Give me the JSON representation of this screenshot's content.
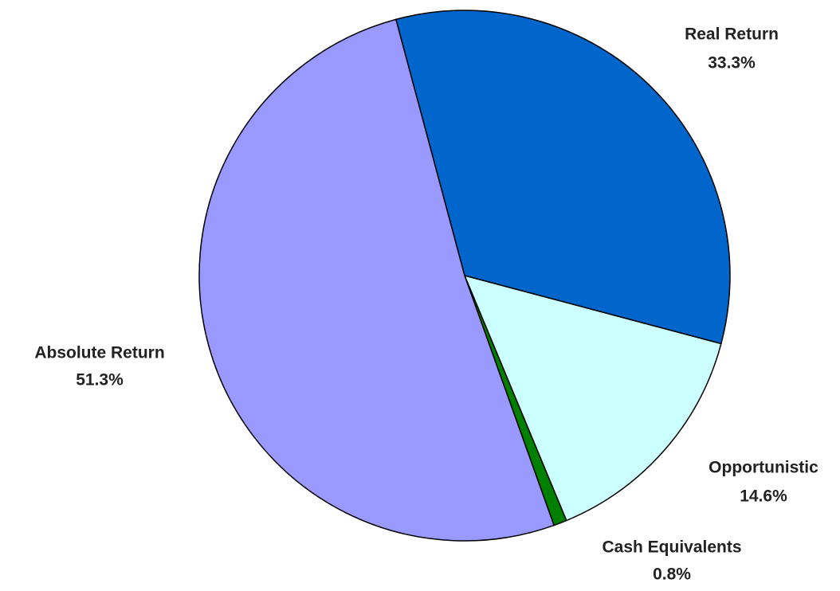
{
  "chart_data": {
    "type": "pie",
    "categories": [
      "Real Return",
      "Opportunistic",
      "Cash Equivalents",
      "Absolute Return"
    ],
    "values": [
      33.3,
      14.6,
      0.8,
      51.3
    ],
    "value_labels": [
      "33.3%",
      "14.6%",
      "0.8%",
      "51.3%"
    ],
    "colors": [
      "#0066cc",
      "#ccffff",
      "#008000",
      "#9999ff"
    ]
  }
}
